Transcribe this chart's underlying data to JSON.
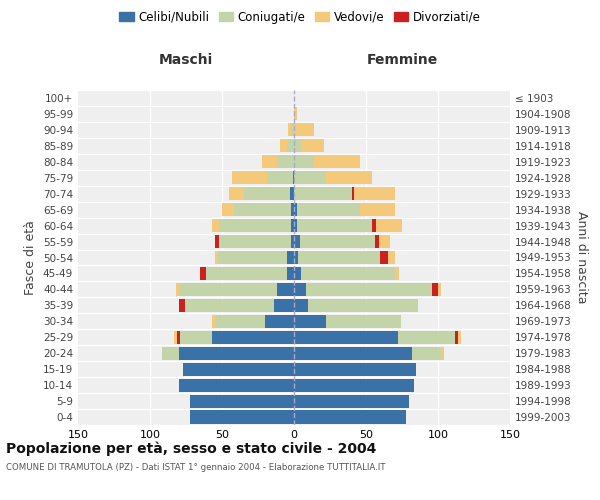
{
  "age_groups": [
    "0-4",
    "5-9",
    "10-14",
    "15-19",
    "20-24",
    "25-29",
    "30-34",
    "35-39",
    "40-44",
    "45-49",
    "50-54",
    "55-59",
    "60-64",
    "65-69",
    "70-74",
    "75-79",
    "80-84",
    "85-89",
    "90-94",
    "95-99",
    "100+"
  ],
  "birth_years": [
    "1999-2003",
    "1994-1998",
    "1989-1993",
    "1984-1988",
    "1979-1983",
    "1974-1978",
    "1969-1973",
    "1964-1968",
    "1959-1963",
    "1954-1958",
    "1949-1953",
    "1944-1948",
    "1939-1943",
    "1934-1938",
    "1929-1933",
    "1924-1928",
    "1919-1923",
    "1914-1918",
    "1909-1913",
    "1904-1908",
    "≤ 1903"
  ],
  "colors": {
    "celibe": "#3a72a8",
    "coniugato": "#c2d4a8",
    "vedovo": "#f5c97a",
    "divorziato": "#cc2020"
  },
  "maschi": {
    "celibe": [
      72,
      72,
      80,
      77,
      80,
      57,
      20,
      14,
      12,
      5,
      5,
      2,
      2,
      2,
      3,
      1,
      0,
      0,
      0,
      0,
      0
    ],
    "coniugato": [
      0,
      0,
      0,
      0,
      12,
      22,
      35,
      62,
      68,
      56,
      48,
      50,
      50,
      40,
      32,
      18,
      12,
      5,
      2,
      0,
      0
    ],
    "vedovo": [
      0,
      0,
      0,
      0,
      0,
      2,
      2,
      0,
      2,
      0,
      2,
      0,
      5,
      8,
      10,
      24,
      10,
      5,
      2,
      0,
      0
    ],
    "divorziato": [
      0,
      0,
      0,
      0,
      0,
      2,
      0,
      4,
      0,
      4,
      0,
      3,
      0,
      0,
      0,
      0,
      0,
      0,
      0,
      0,
      0
    ]
  },
  "femmine": {
    "celibe": [
      78,
      80,
      83,
      85,
      82,
      72,
      22,
      10,
      8,
      5,
      3,
      4,
      2,
      2,
      0,
      0,
      0,
      0,
      0,
      0,
      0
    ],
    "coniugato": [
      0,
      0,
      0,
      0,
      20,
      40,
      52,
      76,
      88,
      65,
      57,
      52,
      52,
      44,
      40,
      22,
      14,
      5,
      0,
      0,
      0
    ],
    "vedovo": [
      0,
      0,
      0,
      0,
      2,
      2,
      0,
      0,
      2,
      3,
      5,
      8,
      18,
      24,
      28,
      32,
      32,
      16,
      14,
      2,
      0
    ],
    "divorziato": [
      0,
      0,
      0,
      0,
      0,
      2,
      0,
      0,
      4,
      0,
      5,
      3,
      3,
      0,
      2,
      0,
      0,
      0,
      0,
      0,
      0
    ]
  },
  "title": "Popolazione per età, sesso e stato civile - 2004",
  "subtitle": "COMUNE DI TRAMUTOLA (PZ) - Dati ISTAT 1° gennaio 2004 - Elaborazione TUTTITALIA.IT",
  "xlabel_left": "Maschi",
  "xlabel_right": "Femmine",
  "ylabel_left": "Fasce di età",
  "ylabel_right": "Anni di nascita",
  "xlim": 150,
  "legend_labels": [
    "Celibi/Nubili",
    "Coniugati/e",
    "Vedovi/e",
    "Divorziati/e"
  ],
  "bg_color": "#efefef",
  "bar_height": 0.82
}
